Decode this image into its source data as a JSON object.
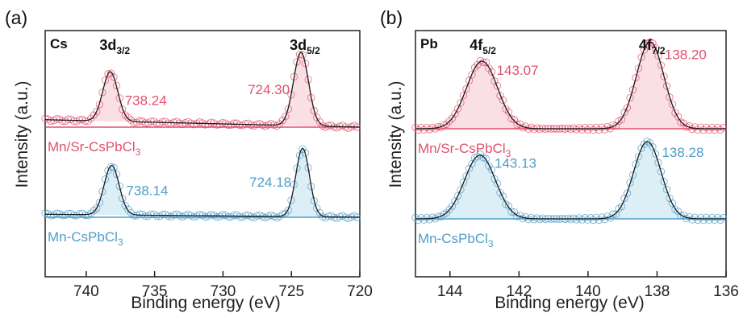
{
  "chart_data": [
    {
      "type": "line",
      "panel_label": "(a)",
      "corner_label": "Cs",
      "xlabel": "Binding energy (eV)",
      "ylabel": "Intensity (a.u.)",
      "xlim": [
        743,
        720
      ],
      "x_reversed": true,
      "xticks": [
        740,
        735,
        730,
        725,
        720
      ],
      "xtick_labels": [
        "740",
        "735",
        "730",
        "725",
        "720"
      ],
      "grid": false,
      "peak_labels": [
        {
          "main": "3d",
          "sub": "3/2",
          "x": 738.2
        },
        {
          "main": "3d",
          "sub": "5/2",
          "x": 724.3
        }
      ],
      "series": [
        {
          "name": "Mn/Sr-CsPbCl",
          "name_sub": "3",
          "color": "#e0506e",
          "fill": "#f6c4d0",
          "offset": 1.0,
          "baseline_start": 0.075,
          "baseline_end": 0.0,
          "peaks": [
            {
              "center": 738.24,
              "label": "738.24",
              "height": 0.5,
              "width": 0.55
            },
            {
              "center": 724.3,
              "label": "724.30",
              "height": 0.74,
              "width": 0.55
            }
          ]
        },
        {
          "name": "Mn-CsPbCl",
          "name_sub": "3",
          "color": "#4f9ec8",
          "fill": "#bfe0ef",
          "offset": 0.0,
          "baseline_start": 0.03,
          "baseline_end": 0.0,
          "peaks": [
            {
              "center": 738.14,
              "label": "738.14",
              "height": 0.5,
              "width": 0.55
            },
            {
              "center": 724.18,
              "label": "724.18",
              "height": 0.69,
              "width": 0.5
            }
          ]
        }
      ]
    },
    {
      "type": "line",
      "panel_label": "(b)",
      "corner_label": "Pb",
      "xlabel": "Binding energy (eV)",
      "ylabel": "Intensity (a.u.)",
      "xlim": [
        145,
        136
      ],
      "x_reversed": true,
      "xticks": [
        144,
        142,
        140,
        138,
        136
      ],
      "xtick_labels": [
        "144",
        "142",
        "140",
        "138",
        "136"
      ],
      "grid": false,
      "peak_labels": [
        {
          "main": "4f",
          "sub": "5/2",
          "x": 143.1
        },
        {
          "main": "4f",
          "sub": "7/2",
          "x": 138.2
        }
      ],
      "series": [
        {
          "name": "Mn/Sr-CsPbCl",
          "name_sub": "3",
          "color": "#e0506e",
          "fill": "#f6c4d0",
          "offset": 1.0,
          "baseline_start": 0.0,
          "baseline_end": 0.0,
          "peaks": [
            {
              "center": 143.07,
              "label": "143.07",
              "height": 0.7,
              "width": 0.45
            },
            {
              "center": 138.2,
              "label": "138.20",
              "height": 0.9,
              "width": 0.4
            }
          ]
        },
        {
          "name": "Mn-CsPbCl",
          "name_sub": "3",
          "color": "#4f9ec8",
          "fill": "#bfe0ef",
          "offset": 0.0,
          "baseline_start": 0.0,
          "baseline_end": 0.0,
          "peaks": [
            {
              "center": 143.13,
              "label": "143.13",
              "height": 0.66,
              "width": 0.45
            },
            {
              "center": 138.28,
              "label": "138.28",
              "height": 0.8,
              "width": 0.4
            }
          ]
        }
      ]
    }
  ]
}
